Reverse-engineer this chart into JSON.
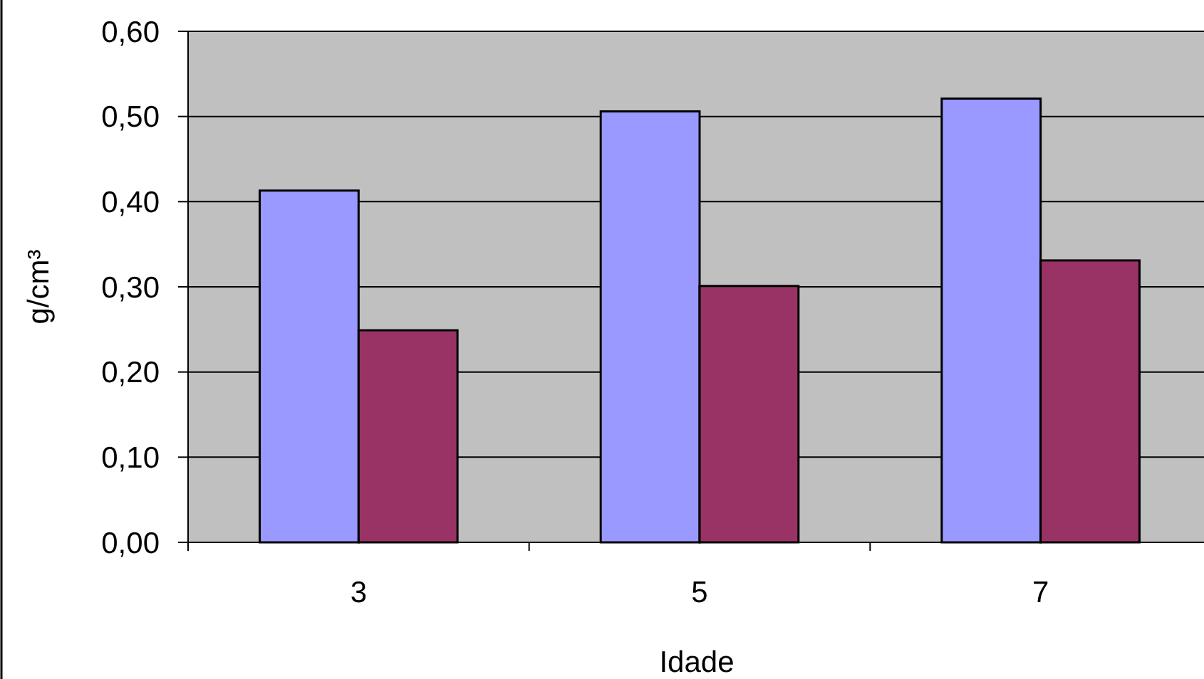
{
  "chart_data": {
    "type": "bar",
    "xlabel": "Idade",
    "ylabel": "g/cm³",
    "categories": [
      "3",
      "5",
      "7"
    ],
    "series": [
      {
        "color": "#9999ff",
        "values": [
          0.413,
          0.506,
          0.521
        ]
      },
      {
        "color": "#993366",
        "values": [
          0.249,
          0.301,
          0.331
        ]
      }
    ],
    "ylim": [
      0,
      0.6
    ],
    "yticks": [
      {
        "value": 0,
        "label": "0,00"
      },
      {
        "value": 0.1,
        "label": "0,10"
      },
      {
        "value": 0.2,
        "label": "0,20"
      },
      {
        "value": 0.3,
        "label": "0,30"
      },
      {
        "value": 0.4,
        "label": "0,40"
      },
      {
        "value": 0.5,
        "label": "0,50"
      },
      {
        "value": 0.6,
        "label": "0,60"
      }
    ],
    "grid": "y"
  }
}
